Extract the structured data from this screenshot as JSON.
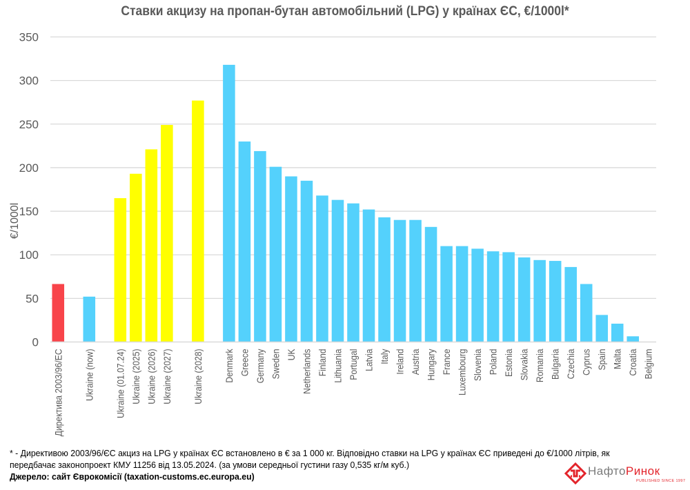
{
  "chart_data": {
    "type": "bar",
    "title": "Ставки акцизу на пропан-бутан автомобільний (LPG) у країнах ЄС, €/1000l*",
    "xlabel": "",
    "ylabel": "€/1000l",
    "ylim": [
      0,
      350
    ],
    "yticks": [
      0,
      50,
      100,
      150,
      200,
      250,
      300,
      350
    ],
    "grid": true,
    "legend": "none",
    "colors": {
      "directive": "#F8444A",
      "current": "#54D1FC",
      "planned": "#FFFF00",
      "grid": "#D9D9D9",
      "text": "#595959"
    },
    "categories": [
      "Директива 2003/96/ЕС",
      "",
      "Ukraine (now)",
      "",
      "Ukraine (01.07.24)",
      "Ukraine (2025)",
      "Ukraine (2026)",
      "Ukraine (2027)",
      "",
      "Ukraine (2028)",
      "",
      "Denmark",
      "Greece",
      "Germany",
      "Sweden",
      "UK",
      "Netherlands",
      "Finland",
      "Lithuania",
      "Portugal",
      "Latvia",
      "Italy",
      "Ireland",
      "Austria",
      "Hungary",
      "France",
      "Luxembourg",
      "Slovenia",
      "Poland",
      "Estonia",
      "Slovakia",
      "Romania",
      "Bulgaria",
      "Czechia",
      "Cyprus",
      "Spain",
      "Malta",
      "Croatia",
      "Belgium"
    ],
    "values": [
      66.5,
      null,
      52,
      null,
      165,
      193,
      221,
      249,
      null,
      277,
      null,
      318,
      230,
      219,
      201,
      190,
      185,
      168,
      163,
      159,
      152,
      143,
      140,
      140,
      132,
      110,
      110,
      107,
      104,
      103,
      97,
      94,
      93,
      86,
      66.5,
      31,
      21,
      6.5,
      0
    ],
    "bar_groups": [
      "directive",
      null,
      "current",
      null,
      "planned",
      "planned",
      "planned",
      "planned",
      null,
      "planned",
      null,
      "current",
      "current",
      "current",
      "current",
      "current",
      "current",
      "current",
      "current",
      "current",
      "current",
      "current",
      "current",
      "current",
      "current",
      "current",
      "current",
      "current",
      "current",
      "current",
      "current",
      "current",
      "current",
      "current",
      "current",
      "current",
      "current",
      "current",
      "current"
    ]
  },
  "footer": {
    "note_line1": "* - Директивою 2003/96/ЄС акциз на LPG у країнах ЄС встановлено в € за 1 000 кг. Відповідно ставки на LPG у країнах  ЄС приведені до €/1000 літрів, як",
    "note_line2": "передбачає законопроект КМУ 11256 від 13.05.2024.  (за умови середньої густини газу 0,535 кг/м куб.)",
    "source": "Джерело: сайт Єврокомісії (taxation-customs.ec.europa.eu)"
  },
  "logo": {
    "name_part1": "Нафто",
    "name_part2": "Ринок",
    "tagline": "PUBLISHED SINCE 1997"
  }
}
